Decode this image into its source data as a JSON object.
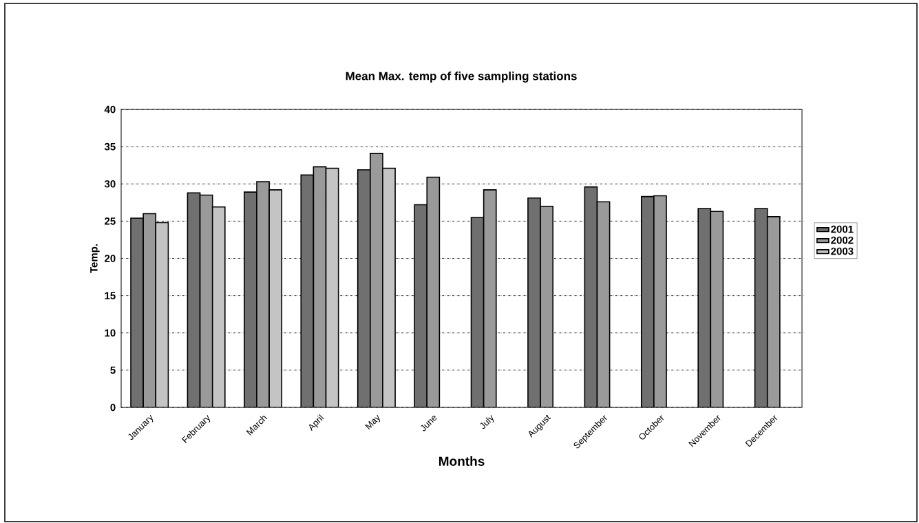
{
  "chart_data": {
    "type": "bar",
    "title": "Mean Max. temp of five sampling stations",
    "xlabel": "Months",
    "ylabel": "Temp.",
    "categories": [
      "January",
      "February",
      "March",
      "April",
      "May",
      "June",
      "July",
      "August",
      "September",
      "October",
      "November",
      "December"
    ],
    "series": [
      {
        "name": "2001",
        "color": "#707070",
        "values": [
          25.4,
          28.8,
          28.9,
          31.2,
          31.9,
          27.2,
          25.5,
          28.1,
          29.6,
          28.3,
          26.7,
          26.7
        ]
      },
      {
        "name": "2002",
        "color": "#9a9a9a",
        "values": [
          26.0,
          28.5,
          30.3,
          32.3,
          34.1,
          30.9,
          29.2,
          27.0,
          27.6,
          28.4,
          26.3,
          25.6
        ]
      },
      {
        "name": "2003",
        "color": "#c4c4c4",
        "values": [
          24.8,
          26.9,
          29.2,
          32.1,
          32.1,
          null,
          null,
          null,
          null,
          null,
          null,
          null
        ]
      }
    ],
    "ylim": [
      0,
      40
    ],
    "yticks": [
      0,
      5,
      10,
      15,
      20,
      25,
      30,
      35,
      40
    ],
    "grid": "y",
    "legend": "right"
  }
}
